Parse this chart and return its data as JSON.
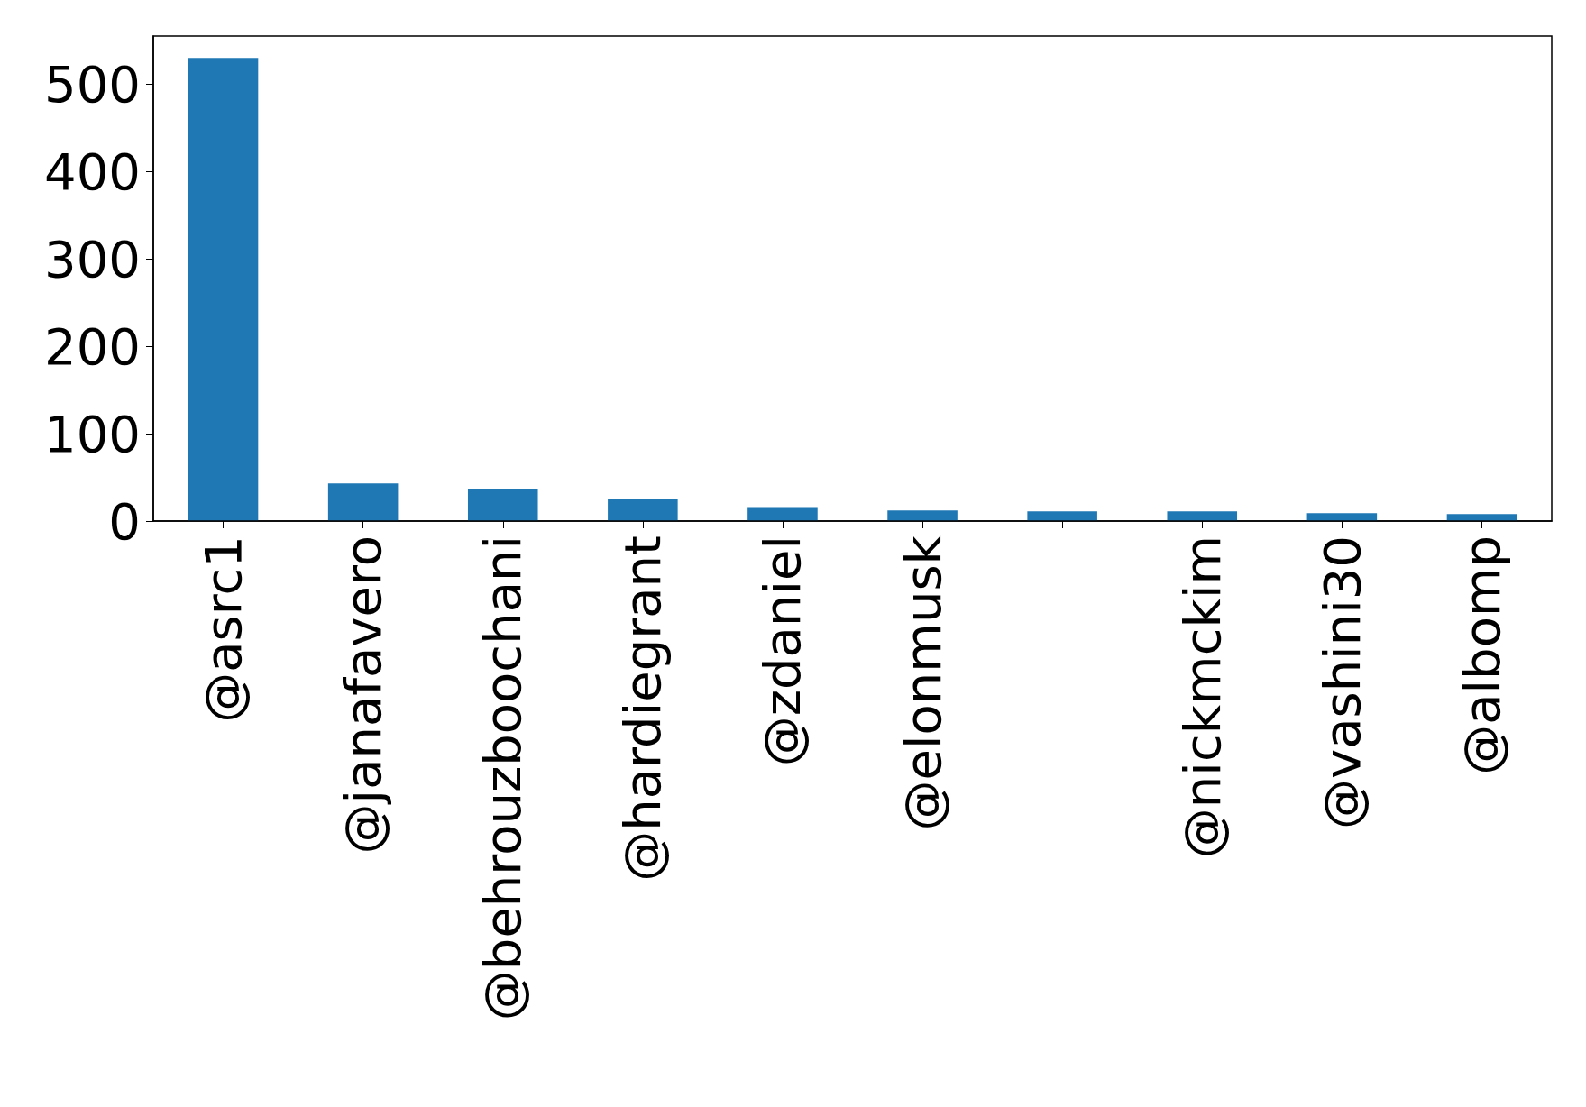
{
  "chart_data": {
    "type": "bar",
    "categories": [
      "@asrc1",
      "@janafavero",
      "@behrouzboochani",
      "@hardiegrant",
      "@zdaniel",
      "@elonmusk",
      null,
      "@nickmckim",
      "@vashini30",
      "@albomp"
    ],
    "values": [
      530,
      43,
      36,
      25,
      16,
      12,
      11,
      11,
      9,
      8
    ],
    "color": "#1f77b4",
    "ylim": [
      0,
      555
    ],
    "yticks": [
      0,
      100,
      200,
      300,
      400,
      500
    ],
    "grid": false
  }
}
